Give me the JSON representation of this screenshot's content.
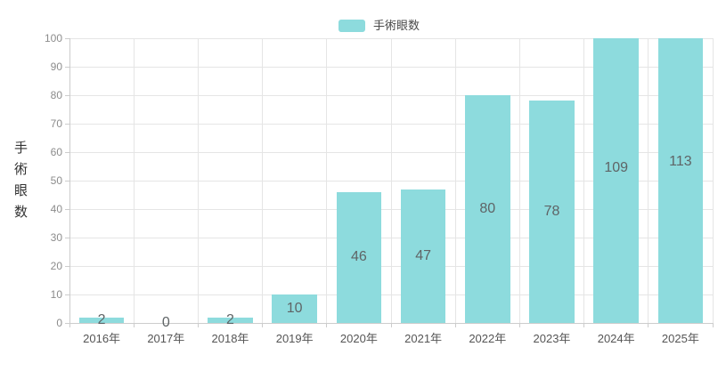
{
  "chart_data": {
    "type": "bar",
    "title": "",
    "categories": [
      "2016年",
      "2017年",
      "2018年",
      "2019年",
      "2020年",
      "2021年",
      "2022年",
      "2023年",
      "2024年",
      "2025年"
    ],
    "values": [
      2,
      0,
      2,
      10,
      46,
      47,
      80,
      78,
      109,
      113
    ],
    "series_name": "手術眼数",
    "xlabel": "",
    "ylabel": "手術眼数",
    "ylim": [
      0,
      100
    ],
    "yticks": [
      0,
      10,
      20,
      30,
      40,
      50,
      60,
      70,
      80,
      90,
      100
    ],
    "grid": true,
    "legend_position": "top-center",
    "values_clipped_at_ymax": true,
    "colors": {
      "bar": "#8DDBDD",
      "value_label": "#5f6466",
      "x_tick_label": "#555555",
      "y_tick_label": "#8c8c8c",
      "gridline": "#e5e5e5",
      "axis_line": "#cccccc",
      "y_axis_name": "#333333"
    }
  },
  "legend": {
    "label": "手術眼数"
  }
}
